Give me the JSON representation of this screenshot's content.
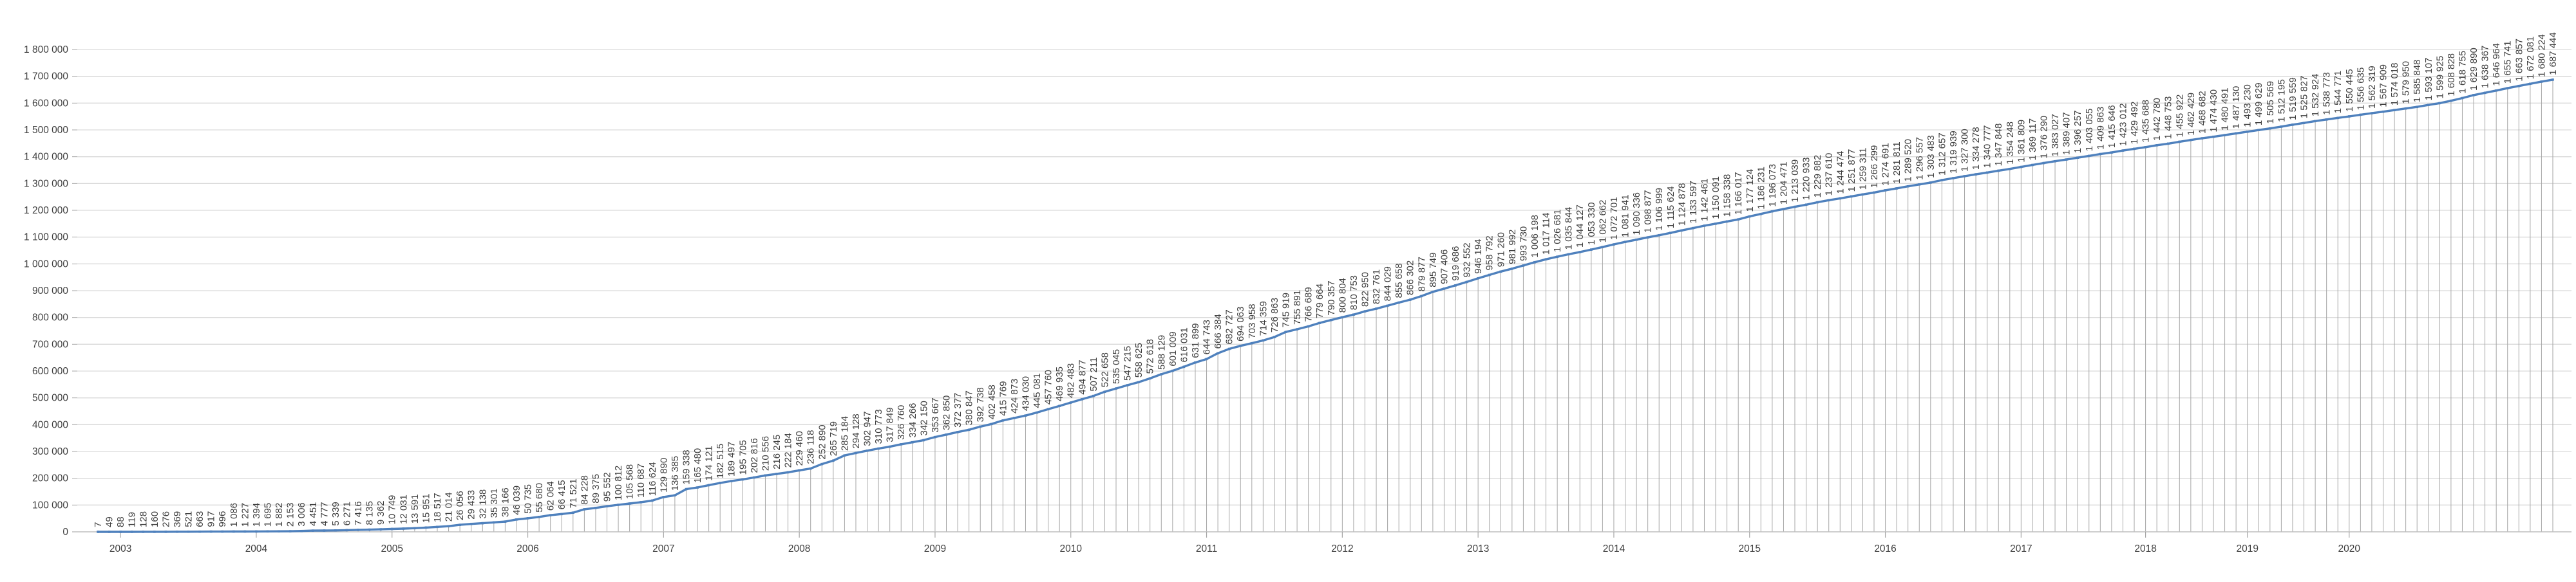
{
  "chart_data": {
    "type": "line",
    "title": "",
    "legend": "none",
    "grid": "horizontal-major-plus-category-droplines",
    "colors": {
      "series_line": "#4F81BD",
      "marker": "#4F81BD",
      "h_gridline": "#D9D9D9",
      "drop_line": "#A6A6A6",
      "axis_line": "#BFBFBF",
      "tick_mark": "#A6A6A6",
      "label_text": "#3F3F3F"
    },
    "y_axis": {
      "min": 0,
      "max": 1800000,
      "step": 100000,
      "number_format": "space-grouped",
      "tick_labels": [
        "0",
        "100 000",
        "200 000",
        "300 000",
        "400 000",
        "500 000",
        "600 000",
        "700 000",
        "800 000",
        "900 000",
        "1 000 000",
        "1 100 000",
        "1 200 000",
        "1 300 000",
        "1 400 000",
        "1 500 000",
        "1 600 000",
        "1 700 000",
        "1 800 000"
      ]
    },
    "x_axis": {
      "year_ticks": [
        {
          "label": "2003",
          "point_index": 2
        },
        {
          "label": "2004",
          "point_index": 14
        },
        {
          "label": "2005",
          "point_index": 26
        },
        {
          "label": "2006",
          "point_index": 38
        },
        {
          "label": "2007",
          "point_index": 50
        },
        {
          "label": "2008",
          "point_index": 62
        },
        {
          "label": "2009",
          "point_index": 74
        },
        {
          "label": "2010",
          "point_index": 86
        },
        {
          "label": "2011",
          "point_index": 98
        },
        {
          "label": "2012",
          "point_index": 110
        },
        {
          "label": "2013",
          "point_index": 122
        },
        {
          "label": "2014",
          "point_index": 134
        },
        {
          "label": "2015",
          "point_index": 146
        },
        {
          "label": "2016",
          "point_index": 158
        },
        {
          "label": "2017",
          "point_index": 170
        },
        {
          "label": "2018",
          "point_index": 181
        },
        {
          "label": "2019",
          "point_index": 190
        },
        {
          "label": "2020",
          "point_index": 199
        }
      ]
    },
    "data_labels": {
      "position": "above",
      "rotation": -90,
      "number_format": "space-grouped"
    },
    "values": [
      7,
      49,
      88,
      119,
      128,
      160,
      276,
      369,
      521,
      663,
      917,
      996,
      1086,
      1227,
      1394,
      1695,
      1882,
      2153,
      3006,
      4451,
      4777,
      5339,
      6271,
      7416,
      8135,
      9362,
      10749,
      12031,
      13591,
      15951,
      18517,
      21014,
      26056,
      29433,
      32138,
      35301,
      38166,
      46039,
      50735,
      55680,
      62064,
      66415,
      71521,
      84228,
      89375,
      95552,
      100812,
      105568,
      110687,
      116624,
      129890,
      136385,
      159338,
      165480,
      174121,
      182515,
      189497,
      195705,
      202816,
      210556,
      216245,
      222184,
      229460,
      236118,
      252890,
      265719,
      285184,
      294128,
      302947,
      310773,
      317849,
      326760,
      334266,
      342150,
      353667,
      362850,
      372377,
      380847,
      392738,
      402458,
      415769,
      424873,
      434030,
      445081,
      457760,
      469935,
      482483,
      494877,
      507211,
      522658,
      535045,
      547215,
      558625,
      572618,
      588129,
      601009,
      616031,
      631899,
      644743,
      666384,
      682727,
      694063,
      703958,
      714359,
      726863,
      745919,
      755891,
      766689,
      779664,
      790357,
      800804,
      810753,
      822950,
      832761,
      844029,
      855658,
      866302,
      879877,
      895749,
      907406,
      919686,
      932552,
      946194,
      958792,
      971260,
      981992,
      993730,
      1006198,
      1017114,
      1026681,
      1035844,
      1044127,
      1053330,
      1062662,
      1072701,
      1081941,
      1090336,
      1098877,
      1106999,
      1115624,
      1124878,
      1133597,
      1142461,
      1150091,
      1158338,
      1166017,
      1177124,
      1186231,
      1196073,
      1204471,
      1213039,
      1220933,
      1229882,
      1237610,
      1244474,
      1251877,
      1259311,
      1266299,
      1274691,
      1281811,
      1289520,
      1296557,
      1303483,
      1312657,
      1319939,
      1327300,
      1334278,
      1340777,
      1347848,
      1354248,
      1361809,
      1369117,
      1376290,
      1383027,
      1389407,
      1396257,
      1403055,
      1409863,
      1415646,
      1423012,
      1429492,
      1435688,
      1442780,
      1448753,
      1455922,
      1462429,
      1468682,
      1474430,
      1480491,
      1487130,
      1493230,
      1499629,
      1505569,
      1512195,
      1519559,
      1525827,
      1532924,
      1538773,
      1544771,
      1550445,
      1556635,
      1562319,
      1567909,
      1574018,
      1579950,
      1585848,
      1593107,
      1599925,
      1608828,
      1618755,
      1629890,
      1638367,
      1646964,
      1655741,
      1663857,
      1672081,
      1680224,
      1687444
    ]
  }
}
